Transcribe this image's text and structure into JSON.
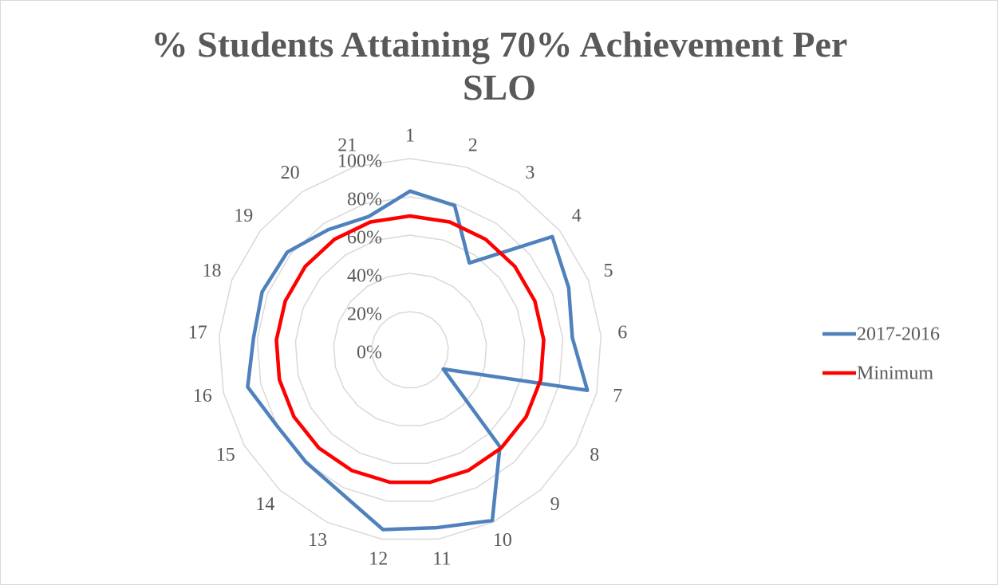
{
  "chart_data": {
    "type": "radar",
    "title": "% Students Attaining 70% Achievement Per SLO",
    "categories": [
      "1",
      "2",
      "3",
      "4",
      "5",
      "6",
      "7",
      "8",
      "9",
      "10",
      "11",
      "12",
      "13",
      "14",
      "15",
      "16",
      "17",
      "18",
      "19",
      "20",
      "21"
    ],
    "series": [
      {
        "name": "2017-2016",
        "color": "#4f81bd",
        "values": [
          83,
          79,
          55,
          95,
          89,
          85,
          95,
          20,
          69,
          99,
          94,
          95,
          83,
          80,
          80,
          87,
          82,
          83,
          82,
          76,
          73
        ]
      },
      {
        "name": "Minimum",
        "color": "#ff0000",
        "values": [
          70,
          70,
          70,
          70,
          70,
          70,
          70,
          70,
          70,
          70,
          70,
          70,
          70,
          70,
          70,
          70,
          70,
          70,
          70,
          70,
          70
        ]
      }
    ],
    "ylim": [
      0,
      100
    ],
    "yticks": [
      {
        "value": 0,
        "label": "0%"
      },
      {
        "value": 20,
        "label": "20%"
      },
      {
        "value": 40,
        "label": "40%"
      },
      {
        "value": 60,
        "label": "60%"
      },
      {
        "value": 80,
        "label": "80%"
      },
      {
        "value": 100,
        "label": "100%"
      }
    ],
    "grid": true,
    "legend": "right"
  }
}
